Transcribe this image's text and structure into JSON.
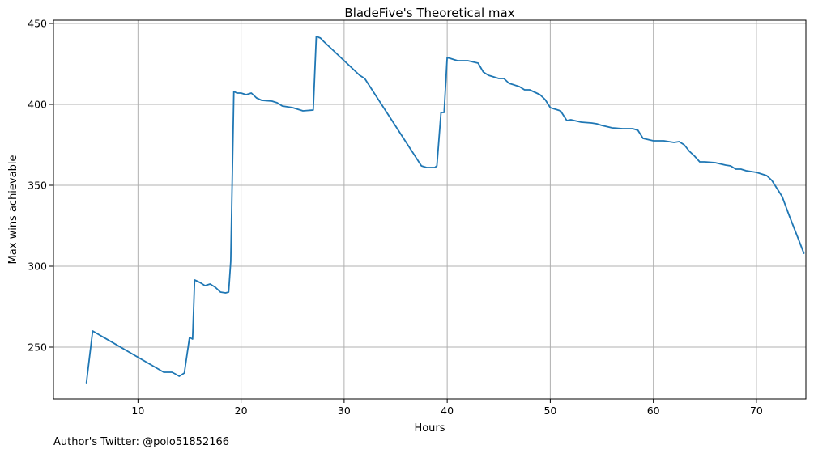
{
  "chart_data": {
    "type": "line",
    "title": "BladeFive's Theoretical max",
    "xlabel": "Hours",
    "ylabel": "Max wins achievable",
    "xlim": [
      1.8,
      74.8
    ],
    "ylim": [
      218,
      452
    ],
    "xticks": [
      10,
      20,
      30,
      40,
      50,
      60,
      70
    ],
    "yticks": [
      250,
      300,
      350,
      400,
      450
    ],
    "grid": true,
    "colors": {
      "line": "#1f77b4",
      "grid": "#b0b0b0"
    },
    "series": [
      {
        "points": [
          [
            5.0,
            228
          ],
          [
            5.6,
            260
          ],
          [
            12.5,
            234.5
          ],
          [
            13.3,
            234.5
          ],
          [
            13.6,
            233.5
          ],
          [
            14.0,
            232
          ],
          [
            14.5,
            234
          ],
          [
            15.0,
            256
          ],
          [
            15.3,
            255
          ],
          [
            15.5,
            291.5
          ],
          [
            16.0,
            290
          ],
          [
            16.5,
            288
          ],
          [
            17.0,
            289
          ],
          [
            17.5,
            287
          ],
          [
            18.0,
            284
          ],
          [
            18.5,
            283.5
          ],
          [
            18.8,
            284
          ],
          [
            19.0,
            303
          ],
          [
            19.3,
            408
          ],
          [
            19.6,
            407
          ],
          [
            20.0,
            407
          ],
          [
            20.5,
            406
          ],
          [
            21.0,
            407
          ],
          [
            21.5,
            404
          ],
          [
            22.0,
            402.5
          ],
          [
            23.0,
            402
          ],
          [
            23.5,
            401
          ],
          [
            24.0,
            399
          ],
          [
            25.0,
            398
          ],
          [
            25.5,
            397
          ],
          [
            26.0,
            396
          ],
          [
            27.0,
            396.5
          ],
          [
            27.3,
            442
          ],
          [
            27.7,
            441
          ],
          [
            28.0,
            439
          ],
          [
            31.5,
            418
          ],
          [
            32.0,
            416
          ],
          [
            37.5,
            362
          ],
          [
            38.0,
            361
          ],
          [
            38.8,
            361
          ],
          [
            39.0,
            362
          ],
          [
            39.4,
            395
          ],
          [
            39.7,
            395
          ],
          [
            40.0,
            429
          ],
          [
            41.0,
            427
          ],
          [
            42.0,
            427
          ],
          [
            43.0,
            425.5
          ],
          [
            43.5,
            420
          ],
          [
            44.0,
            418
          ],
          [
            45.0,
            416
          ],
          [
            45.5,
            416
          ],
          [
            46.0,
            413
          ],
          [
            47.0,
            411
          ],
          [
            47.5,
            409
          ],
          [
            48.0,
            409
          ],
          [
            49.0,
            406
          ],
          [
            49.5,
            403
          ],
          [
            50.0,
            398
          ],
          [
            51.0,
            396
          ],
          [
            51.6,
            390
          ],
          [
            52.0,
            390.5
          ],
          [
            53.0,
            389
          ],
          [
            54.0,
            388.5
          ],
          [
            54.5,
            388
          ],
          [
            55.0,
            387
          ],
          [
            56.0,
            385.5
          ],
          [
            57.0,
            385
          ],
          [
            58.0,
            385
          ],
          [
            58.5,
            384
          ],
          [
            59.0,
            379
          ],
          [
            60.0,
            377.5
          ],
          [
            61.0,
            377.5
          ],
          [
            62.0,
            376.5
          ],
          [
            62.5,
            377
          ],
          [
            63.0,
            375
          ],
          [
            63.5,
            371
          ],
          [
            64.0,
            368
          ],
          [
            64.5,
            364.5
          ],
          [
            65.0,
            364.5
          ],
          [
            66.0,
            364
          ],
          [
            67.0,
            362.5
          ],
          [
            67.5,
            362
          ],
          [
            68.0,
            360
          ],
          [
            68.5,
            360
          ],
          [
            69.0,
            359
          ],
          [
            69.5,
            358.5
          ],
          [
            70.0,
            358
          ],
          [
            71.0,
            356
          ],
          [
            71.5,
            353
          ],
          [
            72.5,
            343
          ],
          [
            73.2,
            331
          ],
          [
            74.0,
            318
          ],
          [
            74.6,
            308
          ]
        ]
      }
    ]
  },
  "footer": {
    "text": "Author's Twitter: @polo51852166"
  }
}
